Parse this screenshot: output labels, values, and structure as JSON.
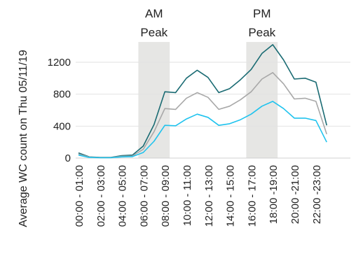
{
  "chart_data": {
    "type": "line",
    "ylabel": "Average WC count on Thu 05/11/19",
    "ylim": [
      0,
      1500
    ],
    "yticks": [
      0,
      400,
      800,
      1200
    ],
    "grid": "horizontal",
    "x_tick_labels": [
      "00:00 - 01:00",
      "02:00 - 03:00",
      "04:00 - 05:00",
      "06:00 - 07:00",
      "08:00 - 09:00",
      "10:00 - 11:00",
      "12:00 - 13:00",
      "14:00 - 15:00",
      "16:00 - 17:00",
      "18:00 -19:00",
      "20:00 -21:00",
      "22:00 -23:00"
    ],
    "x_tick_positions": [
      0,
      2,
      4,
      6,
      8,
      10,
      12,
      14,
      16,
      18,
      20,
      22
    ],
    "x": [
      0,
      1,
      2,
      3,
      4,
      5,
      6,
      7,
      8,
      9,
      10,
      11,
      12,
      13,
      14,
      15,
      16,
      17,
      18,
      19,
      20,
      21,
      22,
      23
    ],
    "series": [
      {
        "color": "#1a6b73",
        "values": [
          65,
          15,
          8,
          8,
          30,
          38,
          150,
          420,
          830,
          820,
          1000,
          1100,
          1010,
          820,
          870,
          980,
          1110,
          1310,
          1420,
          1230,
          990,
          1000,
          950,
          410
        ]
      },
      {
        "color": "#a8a8a8",
        "values": [
          50,
          12,
          6,
          6,
          22,
          26,
          110,
          330,
          620,
          610,
          750,
          820,
          760,
          610,
          650,
          730,
          830,
          990,
          1070,
          930,
          740,
          750,
          710,
          300
        ]
      },
      {
        "color": "#1fc3ee",
        "values": [
          38,
          8,
          4,
          4,
          15,
          18,
          70,
          210,
          410,
          405,
          490,
          550,
          510,
          410,
          430,
          480,
          550,
          650,
          710,
          620,
          500,
          500,
          470,
          200
        ]
      }
    ],
    "bands": [
      {
        "label_line1": "AM",
        "label_line2": "Peak",
        "from": 6,
        "to": 8
      },
      {
        "label_line1": "PM",
        "label_line2": "Peak",
        "from": 16,
        "to": 18
      }
    ],
    "band_color": "#e6e6e4"
  }
}
